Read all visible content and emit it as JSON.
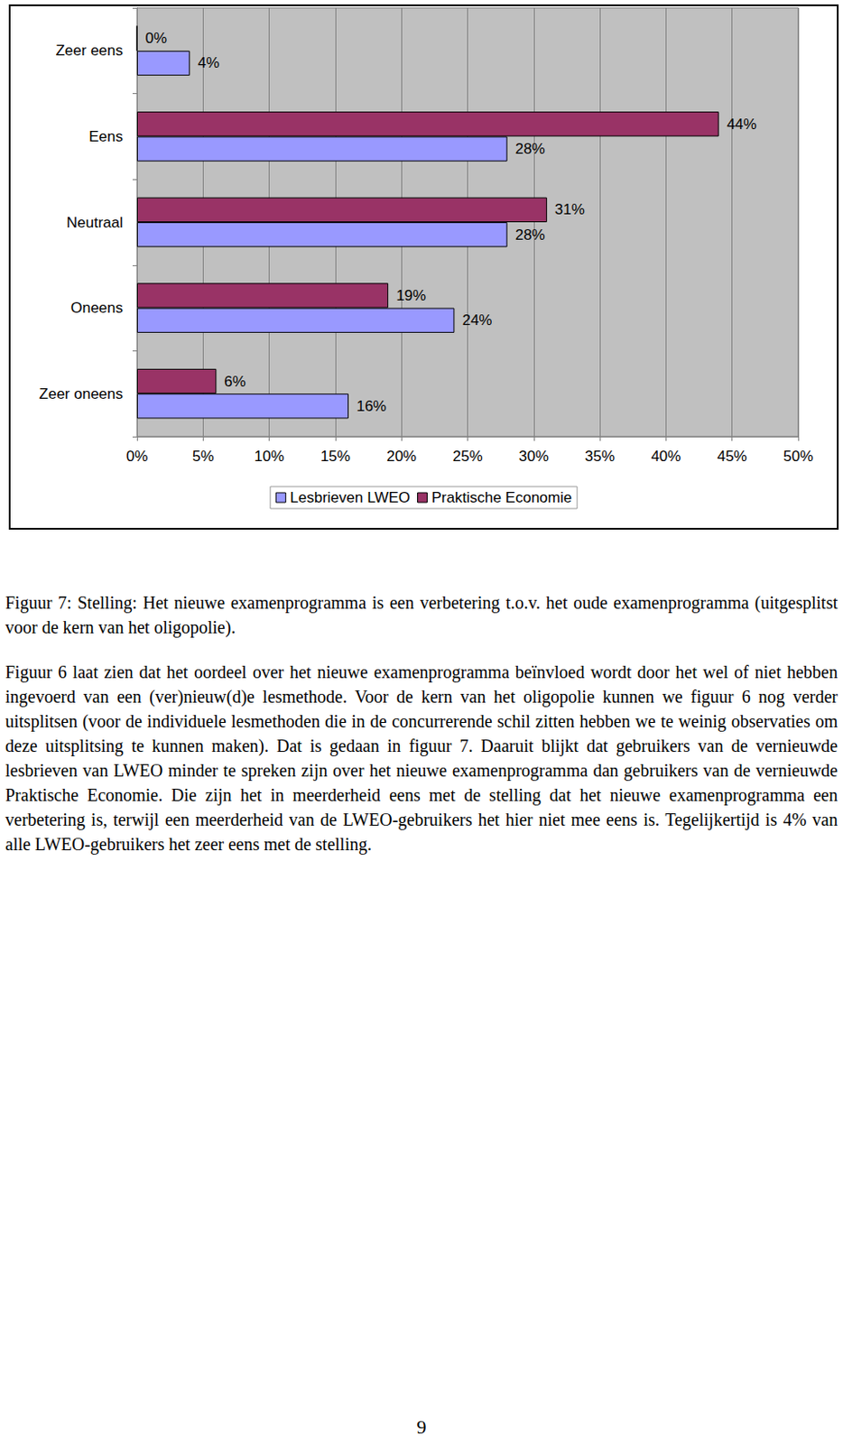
{
  "chart_data": {
    "type": "bar",
    "orientation": "horizontal",
    "categories": [
      "Zeer eens",
      "Eens",
      "Neutraal",
      "Oneens",
      "Zeer oneens"
    ],
    "series": [
      {
        "name": "Lesbrieven LWEO",
        "color": "#9999ff",
        "values": [
          4,
          28,
          28,
          24,
          16
        ],
        "value_labels": [
          "4%",
          "28%",
          "28%",
          "24%",
          "16%"
        ]
      },
      {
        "name": "Praktische Economie",
        "color": "#993366",
        "values": [
          0,
          44,
          31,
          19,
          6
        ],
        "value_labels": [
          "0%",
          "44%",
          "31%",
          "19%",
          "6%"
        ]
      }
    ],
    "xlim": [
      0,
      50
    ],
    "xticks": [
      {
        "value": 0,
        "label": "0%"
      },
      {
        "value": 5,
        "label": "5%"
      },
      {
        "value": 10,
        "label": "10%"
      },
      {
        "value": 15,
        "label": "15%"
      },
      {
        "value": 20,
        "label": "20%"
      },
      {
        "value": 25,
        "label": "25%"
      },
      {
        "value": 30,
        "label": "30%"
      },
      {
        "value": 35,
        "label": "35%"
      },
      {
        "value": 40,
        "label": "40%"
      },
      {
        "value": 45,
        "label": "45%"
      },
      {
        "value": 50,
        "label": "50%"
      }
    ],
    "grid": true,
    "legend": "bottom",
    "data_labels": true
  },
  "caption": "Figuur 7: Stelling: Het nieuwe examenprogramma is een verbetering t.o.v. het oude examenprogramma (uitgesplitst voor de kern van het oligopolie).",
  "paragraph": "Figuur 6 laat zien dat het oordeel over het nieuwe examenprogramma beïnvloed wordt door het wel of niet hebben ingevoerd van een (ver)nieuw(d)e lesmethode. Voor de kern van het oligopolie kunnen we figuur 6 nog verder uitsplitsen (voor de individuele lesmethoden die in de concurrerende schil zitten hebben we te weinig observaties om deze uitsplitsing te kunnen maken). Dat is gedaan in figuur 7. Daaruit blijkt dat gebruikers van de vernieuwde lesbrieven van LWEO minder te spreken zijn over het nieuwe examenprogramma dan gebruikers van de vernieuwde Praktische Economie. Die zijn het in meerderheid eens met de stelling dat het nieuwe examenprogramma een verbetering is, terwijl een meerderheid van de LWEO-gebruikers het hier niet mee eens is. Tegelijkertijd is 4% van alle LWEO-gebruikers het zeer eens met de stelling.",
  "page_number": "9"
}
